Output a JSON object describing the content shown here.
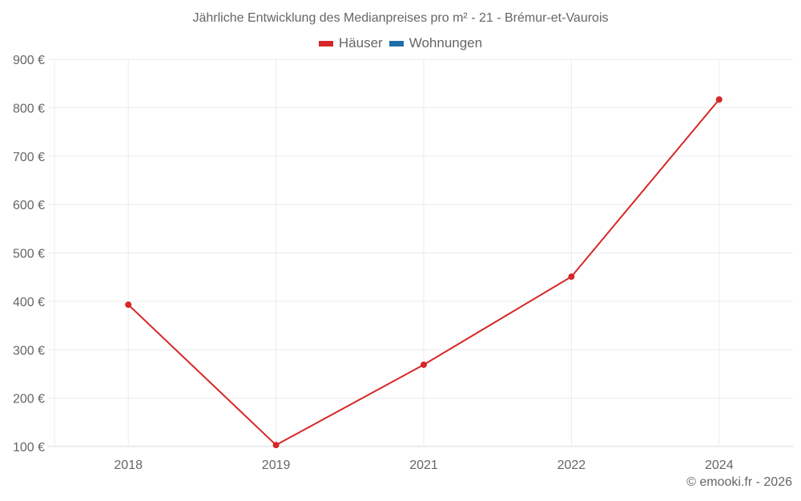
{
  "title": "Jährliche Entwicklung des Medianpreises pro m² - 21 - Brémur-et-Vaurois",
  "legend": [
    {
      "label": "Häuser",
      "color": "#d62728"
    },
    {
      "label": "Wohnungen",
      "color": "#1f6fa8"
    }
  ],
  "credit": "© emooki.fr - 2026",
  "chart_data": {
    "type": "line",
    "title": "Jährliche Entwicklung des Medianpreises pro m² - 21 - Brémur-et-Vaurois",
    "xlabel": "",
    "ylabel": "",
    "categories": [
      "2018",
      "2019",
      "2021",
      "2022",
      "2024"
    ],
    "series": [
      {
        "name": "Häuser",
        "color": "#d62728",
        "values": [
          393,
          103,
          269,
          451,
          817
        ]
      },
      {
        "name": "Wohnungen",
        "color": "#1f6fa8",
        "values": []
      }
    ],
    "ylim": [
      100,
      900
    ],
    "yticks": [
      100,
      200,
      300,
      400,
      500,
      600,
      700,
      800,
      900
    ],
    "ytick_labels": [
      "100 €",
      "200 €",
      "300 €",
      "400 €",
      "500 €",
      "600 €",
      "700 €",
      "800 €",
      "900 €"
    ],
    "grid": true,
    "legend_position": "top"
  }
}
